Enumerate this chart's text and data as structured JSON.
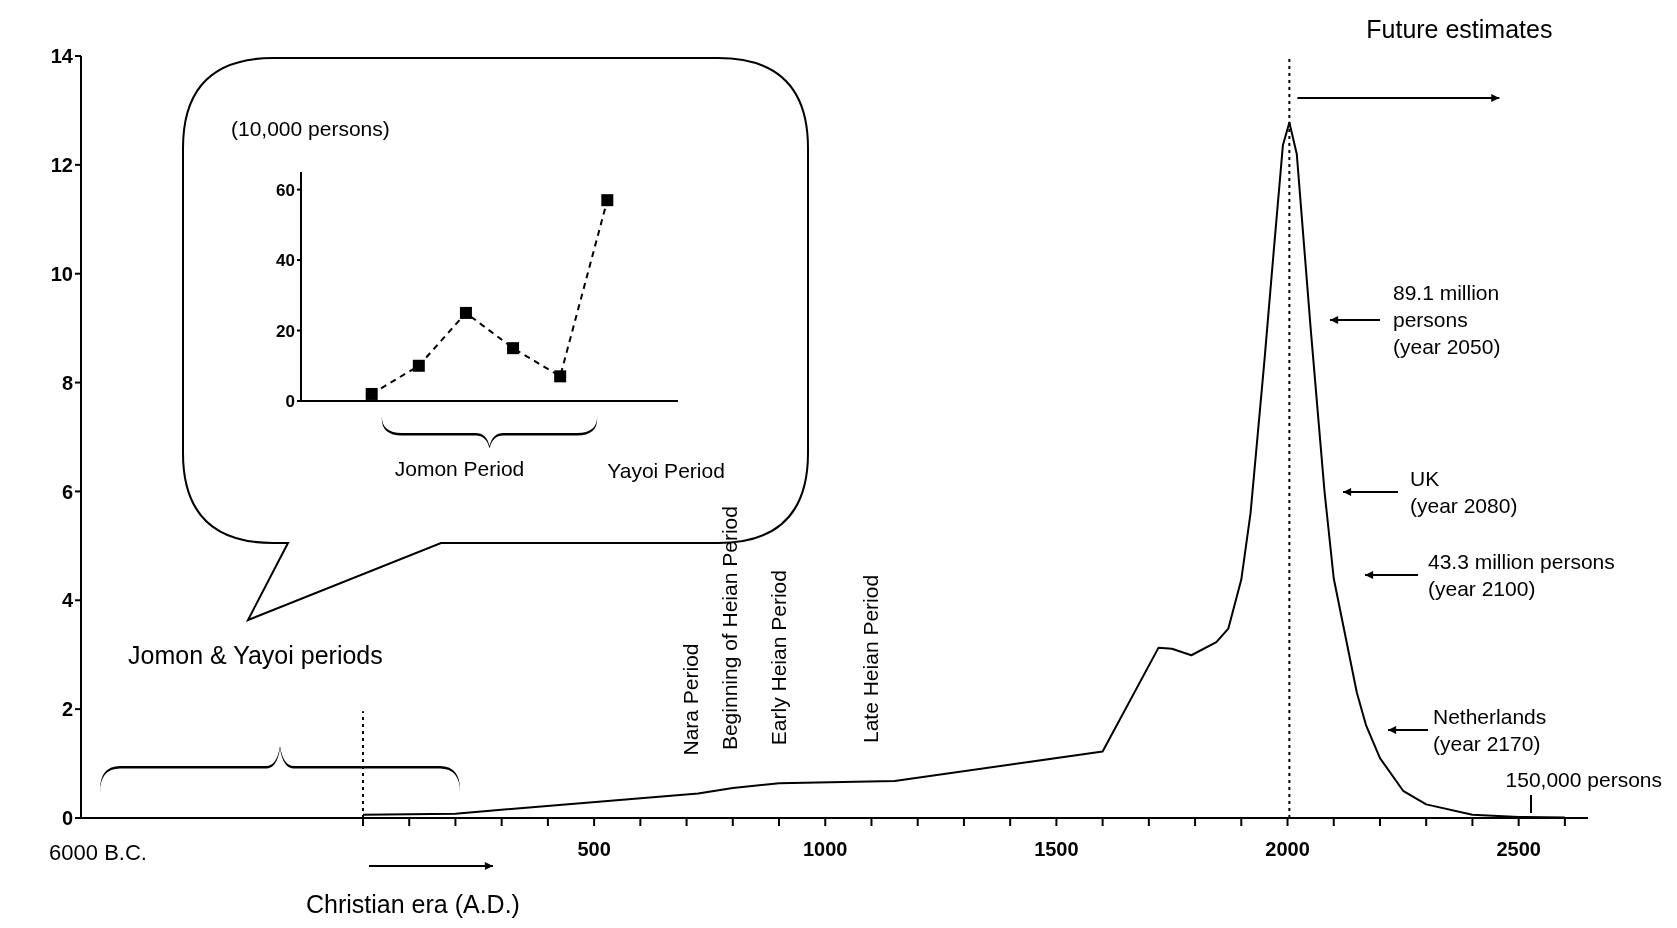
{
  "chart_data": [
    {
      "type": "line",
      "x": [
        0,
        200,
        725,
        800,
        900,
        1150,
        1600,
        1721,
        1750,
        1792,
        1846,
        1872,
        1900,
        1920,
        1950,
        1970,
        1990,
        2004,
        2020,
        2050,
        2080,
        2100,
        2150,
        2170,
        2200,
        2250,
        2300,
        2400,
        2500,
        2600
      ],
      "series": [
        {
          "color": "#000000",
          "values": [
            0.06,
            0.08,
            0.45,
            0.55,
            0.64,
            0.68,
            1.22,
            3.13,
            3.11,
            2.99,
            3.23,
            3.48,
            4.38,
            5.6,
            8.4,
            10.4,
            12.36,
            12.78,
            12.2,
            9.0,
            6.0,
            4.4,
            2.3,
            1.7,
            1.1,
            0.5,
            0.25,
            0.06,
            0.02,
            0.01
          ]
        }
      ],
      "xlim": [
        -610,
        2650
      ],
      "xticks": [
        {
          "value": 0,
          "label": null
        },
        {
          "value": 100,
          "label": null
        },
        {
          "value": 200,
          "label": null
        },
        {
          "value": 300,
          "label": null
        },
        {
          "value": 400,
          "label": null
        },
        500,
        {
          "value": 600,
          "label": null
        },
        {
          "value": 700,
          "label": null
        },
        {
          "value": 800,
          "label": null
        },
        {
          "value": 900,
          "label": null
        },
        1000,
        {
          "value": 1100,
          "label": null
        },
        {
          "value": 1200,
          "label": null
        },
        {
          "value": 1300,
          "label": null
        },
        {
          "value": 1400,
          "label": null
        },
        1500,
        {
          "value": 1600,
          "label": null
        },
        {
          "value": 1700,
          "label": null
        },
        {
          "value": 1800,
          "label": null
        },
        {
          "value": 1900,
          "label": null
        },
        2000,
        {
          "value": 2100,
          "label": null
        },
        {
          "value": 2200,
          "label": null
        },
        {
          "value": 2300,
          "label": null
        },
        {
          "value": 2400,
          "label": null
        },
        2500,
        {
          "value": 2600,
          "label": null
        }
      ],
      "ylim": [
        0,
        14
      ],
      "yticks": [
        0,
        2,
        4,
        6,
        8,
        10,
        12,
        14
      ],
      "ref_lines": [
        {
          "axis": "x",
          "value": 0,
          "line_style": "dotted"
        },
        {
          "axis": "x",
          "value": 2004,
          "line_style": "dotted"
        }
      ],
      "annotations": [
        "Future estimates",
        "Jomon & Yayoi periods",
        "Christian era (A.D.)",
        "6000 B.C.",
        "89.1 million\npersons\n(year 2050)",
        "UK\n(year 2080)",
        "43.3 million persons\n(year 2100)",
        "Netherlands\n(year 2170)",
        "150,000 persons",
        {
          "text": "Nara Period",
          "x": 710,
          "y": 0.45
        },
        {
          "text": "Beginning of Heian Period",
          "x": 794,
          "y": 0.55
        },
        {
          "text": "Early Heian Period",
          "x": 900,
          "y": 0.64
        },
        {
          "text": "Late Heian Period",
          "x": 1100,
          "y": 0.68
        }
      ]
    },
    {
      "type": "line",
      "categories": [
        null,
        null,
        null,
        null,
        null,
        null
      ],
      "series": [
        {
          "color": "#000000",
          "values": [
            2,
            10,
            25,
            15,
            7,
            57
          ]
        }
      ],
      "ylim": [
        0,
        65
      ],
      "yticks": [
        0,
        20,
        40,
        60
      ],
      "ylabel": "(10,000 persons)",
      "marker": "square",
      "line_style": "dashed",
      "annotations": [
        "Jomon Period",
        "Yayoi Period"
      ]
    }
  ]
}
